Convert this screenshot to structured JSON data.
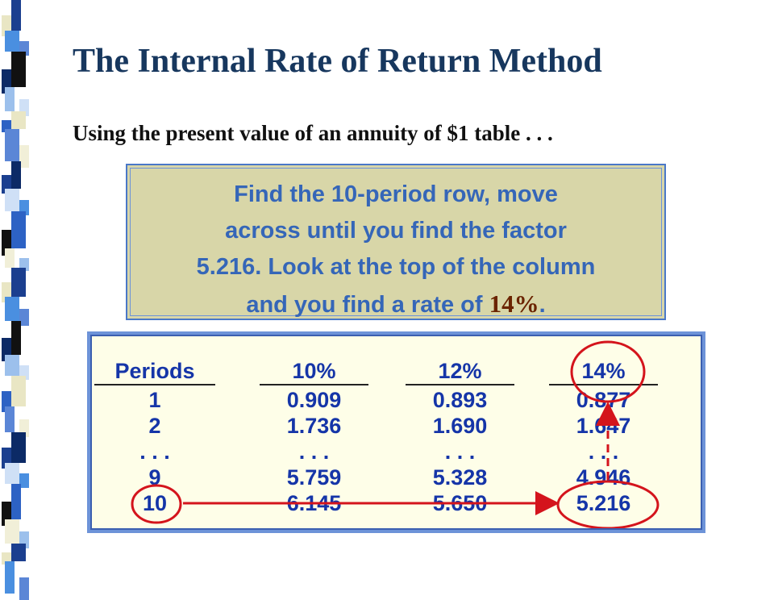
{
  "slide": {
    "title": "The Internal Rate of Return Method",
    "subtitle": "Using the present value of an annuity of $1 table . . ."
  },
  "callout": {
    "lines": [
      "Find the 10-period row, move",
      "across until you find the factor",
      "5.216.  Look at the top of the column"
    ],
    "line4_prefix": "and you find a rate of ",
    "rate": "14%",
    "line4_suffix": "."
  },
  "table": {
    "headers": [
      "Periods",
      "10%",
      "12%",
      "14%"
    ],
    "rows": [
      [
        "1",
        "0.909",
        "0.893",
        "0.877"
      ],
      [
        "2",
        "1.736",
        "1.690",
        "1.647"
      ],
      [
        ". . .",
        ". . .",
        ". . .",
        ". . ."
      ],
      [
        "9",
        "5.759",
        "5.328",
        "4.946"
      ],
      [
        "10",
        "6.145",
        "5.650",
        "5.216"
      ]
    ]
  },
  "colors": {
    "title": "#17375e",
    "callout_text": "#3566b8",
    "rate_highlight": "#6b2400",
    "callout_bg": "#d8d6a8",
    "table_text": "#1535a8",
    "marker": "#d4141c"
  }
}
